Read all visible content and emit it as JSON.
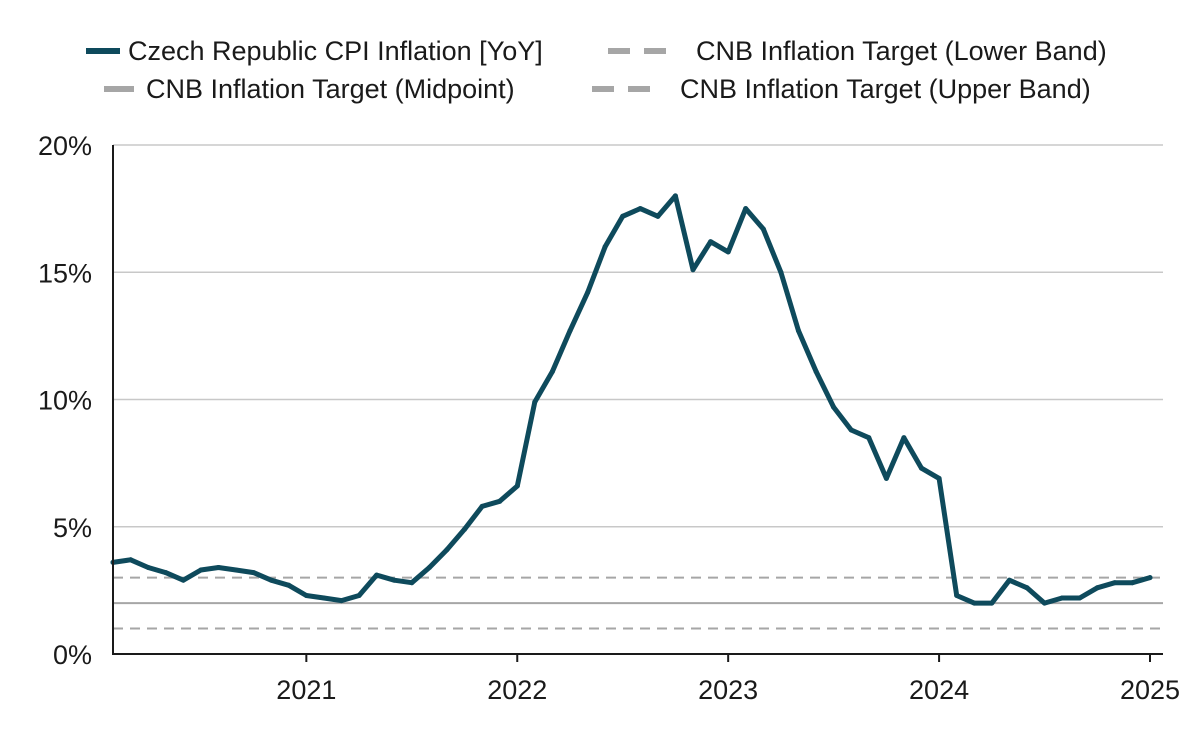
{
  "chart_data": {
    "type": "line",
    "title": "",
    "xlabel": "",
    "ylabel": "",
    "ylim": [
      0,
      20
    ],
    "yticks": [
      0,
      5,
      10,
      15,
      20
    ],
    "ytick_labels": [
      "0%",
      "5%",
      "10%",
      "15%",
      "20%"
    ],
    "xlim": [
      "2020-02",
      "2025-01"
    ],
    "xticks": [
      "2021",
      "2022",
      "2023",
      "2024",
      "2025"
    ],
    "grid": true,
    "legend_position": "top",
    "series": [
      {
        "name": "Czech Republic CPI Inflation [YoY]",
        "color": "#0e4a5c",
        "style": "solid",
        "x": [
          "2020-02",
          "2020-03",
          "2020-04",
          "2020-05",
          "2020-06",
          "2020-07",
          "2020-08",
          "2020-09",
          "2020-10",
          "2020-11",
          "2020-12",
          "2021-01",
          "2021-02",
          "2021-03",
          "2021-04",
          "2021-05",
          "2021-06",
          "2021-07",
          "2021-08",
          "2021-09",
          "2021-10",
          "2021-11",
          "2021-12",
          "2022-01",
          "2022-02",
          "2022-03",
          "2022-04",
          "2022-05",
          "2022-06",
          "2022-07",
          "2022-08",
          "2022-09",
          "2022-10",
          "2022-11",
          "2022-12",
          "2023-01",
          "2023-02",
          "2023-03",
          "2023-04",
          "2023-05",
          "2023-06",
          "2023-07",
          "2023-08",
          "2023-09",
          "2023-10",
          "2023-11",
          "2023-12",
          "2024-01",
          "2024-02",
          "2024-03",
          "2024-04",
          "2024-05",
          "2024-06",
          "2024-07",
          "2024-08",
          "2024-09",
          "2024-10",
          "2024-11",
          "2024-12",
          "2025-01"
        ],
        "values": [
          3.6,
          3.7,
          3.4,
          3.2,
          2.9,
          3.3,
          3.4,
          3.3,
          3.2,
          2.9,
          2.7,
          2.3,
          2.2,
          2.1,
          2.3,
          3.1,
          2.9,
          2.8,
          3.4,
          4.1,
          4.9,
          5.8,
          6.0,
          6.6,
          9.9,
          11.1,
          12.7,
          14.2,
          16.0,
          17.2,
          17.5,
          17.2,
          18.0,
          15.1,
          16.2,
          15.8,
          17.5,
          16.7,
          15.0,
          12.7,
          11.1,
          9.7,
          8.8,
          8.5,
          6.9,
          8.5,
          7.3,
          6.9,
          2.3,
          2.0,
          2.0,
          2.9,
          2.6,
          2.0,
          2.2,
          2.2,
          2.6,
          2.8,
          2.8,
          3.0
        ]
      },
      {
        "name": "CNB Inflation Target (Lower Band)",
        "color": "#a6a6a6",
        "style": "dashed",
        "values": [
          1.0
        ]
      },
      {
        "name": "CNB Inflation Target (Midpoint)",
        "color": "#a6a6a6",
        "style": "solid-gray",
        "values": [
          2.0
        ]
      },
      {
        "name": "CNB Inflation Target (Upper Band)",
        "color": "#a6a6a6",
        "style": "dashed",
        "values": [
          3.0
        ]
      }
    ]
  },
  "colors": {
    "line": "#0e4a5c",
    "target": "#a6a6a6",
    "grid": "#c8c8c8",
    "axis": "#1a1a1a"
  }
}
